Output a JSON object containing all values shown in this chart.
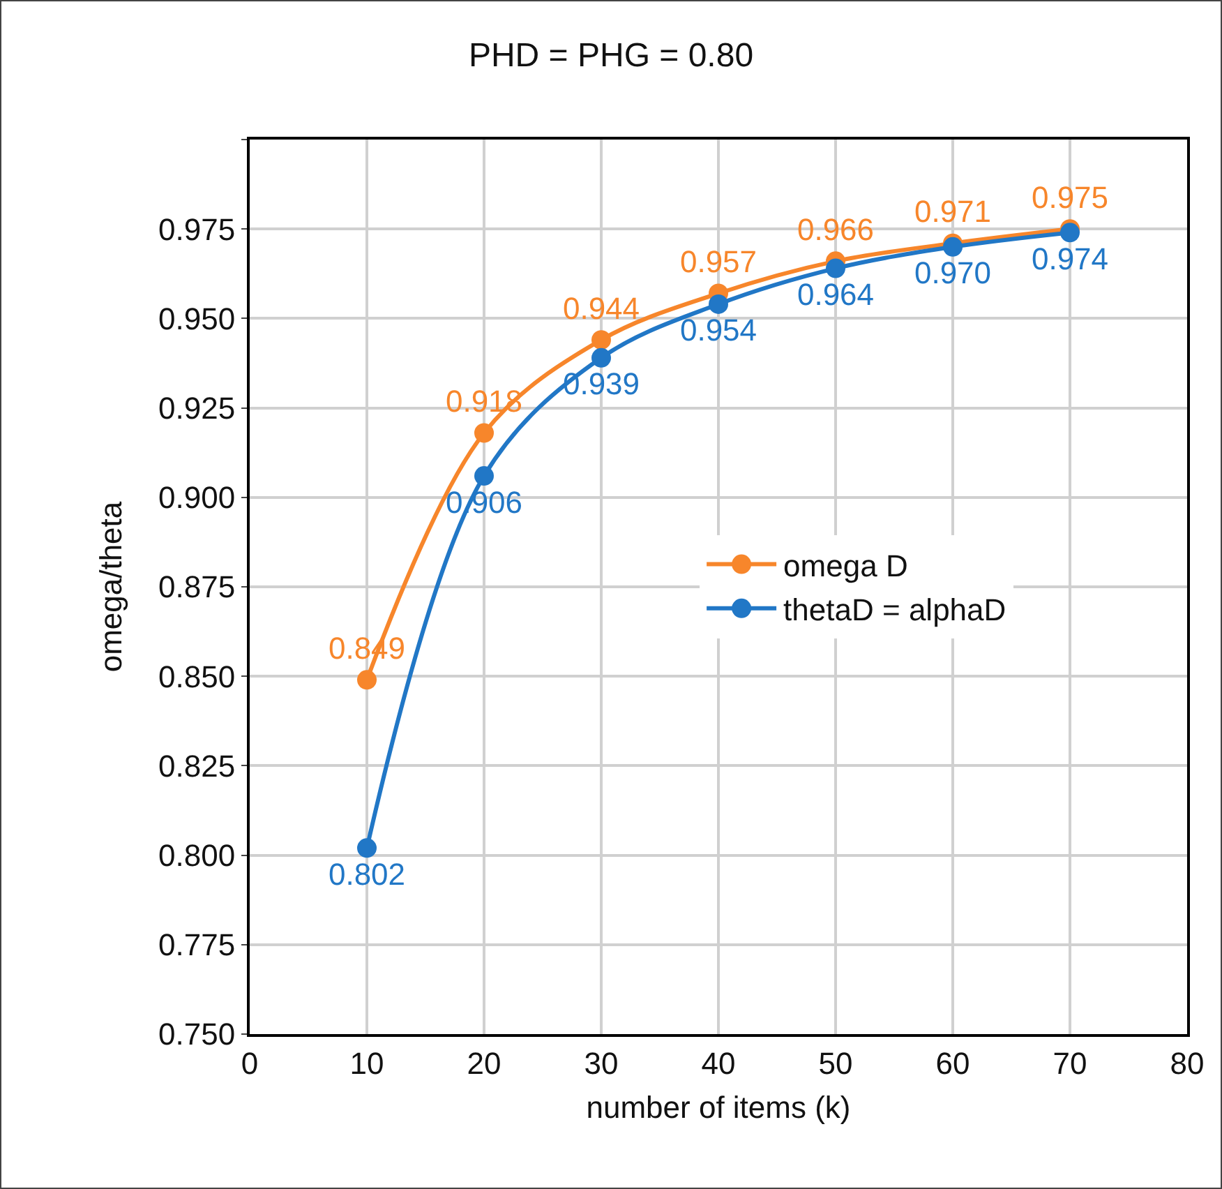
{
  "chart_data": {
    "type": "line",
    "title": "PHD = PHG = 0.80",
    "xlabel": "number of items (k)",
    "ylabel": "omega/theta",
    "x": [
      10,
      20,
      30,
      40,
      50,
      60,
      70
    ],
    "series": [
      {
        "name": "omega D",
        "color": "#f7862b",
        "values": [
          0.849,
          0.918,
          0.944,
          0.957,
          0.966,
          0.971,
          0.975
        ],
        "value_labels": [
          "0.849",
          "0.918",
          "0.944",
          "0.957",
          "0.966",
          "0.971",
          "0.975"
        ]
      },
      {
        "name": "thetaD = alphaD",
        "color": "#2177c6",
        "values": [
          0.802,
          0.906,
          0.939,
          0.954,
          0.964,
          0.97,
          0.974
        ],
        "value_labels": [
          "0.802",
          "0.906",
          "0.939",
          "0.954",
          "0.964",
          "0.970",
          "0.974"
        ]
      }
    ],
    "xlim": [
      0,
      80
    ],
    "xticks": [
      0,
      10,
      20,
      30,
      40,
      50,
      60,
      70,
      80
    ],
    "ylim": [
      0.75,
      1.0
    ],
    "yticks": [
      {
        "value": 0.75,
        "label": "0.750"
      },
      {
        "value": 0.775,
        "label": "0.775"
      },
      {
        "value": 0.8,
        "label": "0.800"
      },
      {
        "value": 0.825,
        "label": "0.825"
      },
      {
        "value": 0.85,
        "label": "0.850"
      },
      {
        "value": 0.875,
        "label": "0.875"
      },
      {
        "value": 0.9,
        "label": "0.900"
      },
      {
        "value": 0.925,
        "label": "0.925"
      },
      {
        "value": 0.95,
        "label": "0.950"
      },
      {
        "value": 0.975,
        "label": "0.975"
      },
      {
        "value": 1.0,
        "label": null
      }
    ],
    "grid": true,
    "legend": "right",
    "marker": "circle",
    "line_style": "solid"
  }
}
